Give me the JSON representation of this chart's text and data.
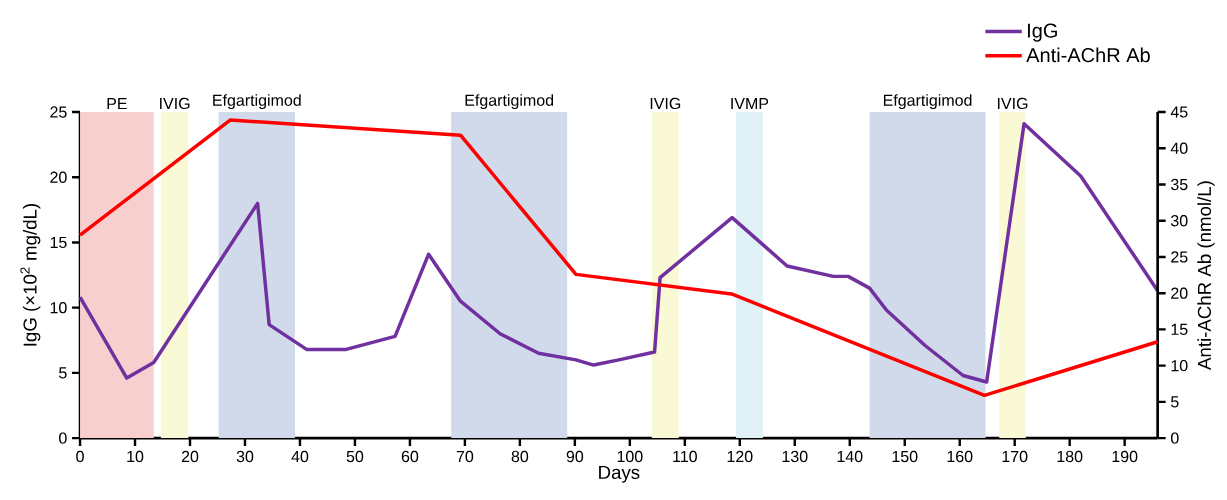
{
  "chart_data": {
    "type": "line",
    "xlabel": "Days",
    "ylabel": "IgG (×10$^{2}$ mg/dL)",
    "y2label": "Anti-AChR Ab (nmol/L)",
    "xlim": [
      0,
      196
    ],
    "xticks": [
      0,
      10,
      20,
      30,
      40,
      50,
      60,
      70,
      80,
      90,
      100,
      110,
      120,
      130,
      140,
      150,
      160,
      170,
      180,
      190
    ],
    "ylim": [
      0,
      25
    ],
    "yticks": [
      0,
      5,
      10,
      15,
      20,
      25
    ],
    "y2lim": [
      0,
      45
    ],
    "y2ticks": [
      0,
      5,
      10,
      15,
      20,
      25,
      30,
      35,
      40,
      45
    ],
    "legend": "top right",
    "grid": false,
    "series": [
      {
        "name": "IgG",
        "color": "#7030a0",
        "x": [
          0,
          8.5,
          13.4,
          32.3,
          34.4,
          41.2,
          48.4,
          57.3,
          63.4,
          69.2,
          76.4,
          83.4,
          90.2,
          93.4,
          98,
          104.5,
          105.5,
          118.6,
          128.6,
          137,
          139.7,
          143.6,
          146.7,
          153.7,
          160.6,
          164.9,
          171.7,
          182,
          196
        ],
        "values": [
          10.8,
          4.6,
          5.8,
          18.0,
          8.7,
          6.8,
          6.8,
          7.8,
          14.1,
          10.5,
          8.0,
          6.5,
          6.0,
          5.6,
          6.0,
          6.6,
          12.3,
          16.9,
          13.2,
          12.4,
          12.4,
          11.5,
          9.8,
          7.1,
          4.8,
          4.3,
          24.1,
          20.1,
          11.3
        ]
      },
      {
        "name": "Anti-AChR Ab",
        "color": "#ff0000",
        "axis": "y2",
        "x": [
          0,
          27.3,
          69.2,
          90.2,
          118.5,
          164.5,
          196
        ],
        "values": [
          28.0,
          43.9,
          41.8,
          22.6,
          19.9,
          5.9,
          13.3
        ]
      }
    ],
    "bands": [
      {
        "axis": "x",
        "from": 0,
        "to": 13.4,
        "label": "PE",
        "color": "#f8cfcf"
      },
      {
        "axis": "x",
        "from": 14.7,
        "to": 19.7,
        "label": "IVIG",
        "color": "#f9f9d5"
      },
      {
        "axis": "x",
        "from": 25.2,
        "to": 39.1,
        "label": "Efgartigimod",
        "color": "#d1daea"
      },
      {
        "axis": "x",
        "from": 67.5,
        "to": 88.6,
        "label": "Efgartigimod",
        "color": "#d1daea"
      },
      {
        "axis": "x",
        "from": 104,
        "to": 108.9,
        "label": "IVIG",
        "color": "#f9f9d5"
      },
      {
        "axis": "x",
        "from": 119.3,
        "to": 124.2,
        "label": "IVMP",
        "color": "#e0f2f5"
      },
      {
        "axis": "x",
        "from": 143.6,
        "to": 164.7,
        "label": "Efgartigimod",
        "color": "#d1daea"
      },
      {
        "axis": "x",
        "from": 167.2,
        "to": 172,
        "label": "IVIG",
        "color": "#f9f9d5"
      }
    ]
  }
}
